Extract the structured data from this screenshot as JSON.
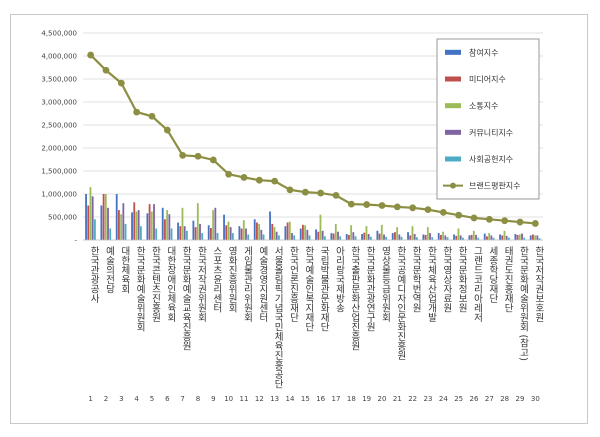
{
  "chart_data": {
    "type": "bar",
    "categories": [
      "한국관광공사",
      "예술의전당",
      "대한체육회",
      "한국문화예술위원회",
      "한국콘텐츠진흥원",
      "대한장애인체육회",
      "한국문화예술교육진흥원",
      "한국저작권위원회",
      "스포츠윤리센터",
      "영화진흥위원회",
      "게임물관리위원회",
      "예술경영지원센터",
      "서울올림픽기념국민체육진흥공단",
      "한국언론진흥재단",
      "한국예술인복지재단",
      "국립박물관문화재단",
      "아리랑국제방송",
      "한국출판문화산업진흥원",
      "한국문화관광연구원",
      "영상물등급위원회",
      "한국공예디자인문화진흥원",
      "한국문학번역원",
      "한국체육산업개발",
      "한국영상자료원",
      "한국문화정보원",
      "그랜드코리아레저",
      "세종학당재단",
      "태권도진흥재단",
      "한국문화예술위원회 (참고)",
      "한국저작권보호원"
    ],
    "x": [
      "1",
      "2",
      "3",
      "4",
      "5",
      "6",
      "7",
      "8",
      "9",
      "10",
      "11",
      "12",
      "13",
      "14",
      "15",
      "16",
      "17",
      "18",
      "19",
      "20",
      "21",
      "22",
      "23",
      "24",
      "25",
      "26",
      "27",
      "28",
      "29",
      "30"
    ],
    "ylim": [
      0,
      4500000
    ],
    "yticks": [
      "-",
      "500,000",
      "1,000,000",
      "1,500,000",
      "2,000,000",
      "2,500,000",
      "3,000,000",
      "3,500,000",
      "4,000,000",
      "4,500,000"
    ],
    "grid": true,
    "legend_position": "top-right",
    "series": [
      {
        "name": "참여지수",
        "color": "#4472c4",
        "values": [
          1000000,
          750000,
          1000000,
          600000,
          580000,
          700000,
          380000,
          420000,
          320000,
          550000,
          300000,
          450000,
          620000,
          300000,
          250000,
          230000,
          150000,
          130000,
          130000,
          200000,
          150000,
          170000,
          120000,
          150000,
          120000,
          100000,
          140000,
          120000,
          130000,
          100000
        ]
      },
      {
        "name": "미디어지수",
        "color": "#c0504d",
        "values": [
          750000,
          1000000,
          650000,
          820000,
          780000,
          450000,
          300000,
          280000,
          260000,
          320000,
          250000,
          380000,
          350000,
          380000,
          330000,
          180000,
          140000,
          110000,
          160000,
          140000,
          170000,
          100000,
          110000,
          110000,
          90000,
          110000,
          80000,
          100000,
          110000,
          120000
        ]
      },
      {
        "name": "소통지수",
        "color": "#9bbb59",
        "values": [
          1150000,
          1000000,
          560000,
          620000,
          620000,
          650000,
          700000,
          800000,
          650000,
          400000,
          430000,
          350000,
          280000,
          400000,
          320000,
          550000,
          350000,
          320000,
          300000,
          330000,
          280000,
          300000,
          280000,
          180000,
          250000,
          200000,
          150000,
          200000,
          120000,
          100000
        ]
      },
      {
        "name": "커뮤니티지수",
        "color": "#8064a2",
        "values": [
          950000,
          700000,
          800000,
          650000,
          780000,
          560000,
          300000,
          350000,
          700000,
          280000,
          250000,
          220000,
          180000,
          150000,
          220000,
          200000,
          180000,
          170000,
          130000,
          120000,
          120000,
          130000,
          150000,
          100000,
          100000,
          110000,
          100000,
          90000,
          140000,
          100000
        ]
      },
      {
        "name": "사회공헌지수",
        "color": "#4bacc6",
        "values": [
          450000,
          250000,
          350000,
          300000,
          250000,
          250000,
          200000,
          150000,
          150000,
          150000,
          120000,
          120000,
          100000,
          100000,
          100000,
          80000,
          80000,
          80000,
          70000,
          70000,
          70000,
          60000,
          60000,
          60000,
          50000,
          50000,
          50000,
          50000,
          50000,
          40000
        ]
      }
    ],
    "line_series": {
      "name": "브랜드평판지수",
      "color": "#8c8f43",
      "values": [
        4020000,
        3690000,
        3410000,
        2780000,
        2690000,
        2390000,
        1840000,
        1820000,
        1740000,
        1430000,
        1360000,
        1300000,
        1280000,
        1090000,
        1040000,
        1020000,
        970000,
        780000,
        770000,
        750000,
        720000,
        700000,
        660000,
        600000,
        540000,
        480000,
        450000,
        420000,
        390000,
        360000
      ]
    }
  }
}
